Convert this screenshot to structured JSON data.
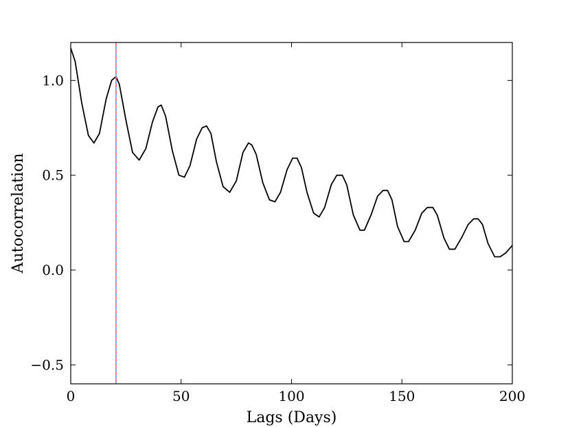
{
  "chart_data": {
    "type": "line",
    "title": "",
    "xlabel": "Lags (Days)",
    "ylabel": "Autocorrelation",
    "xlim": [
      0,
      200
    ],
    "ylim": [
      -0.6,
      1.2
    ],
    "xticks": [
      0,
      50,
      100,
      150,
      200
    ],
    "xtick_labels": [
      "0",
      "50",
      "100",
      "150",
      "200"
    ],
    "yticks": [
      -0.5,
      0.0,
      0.5,
      1.0
    ],
    "ytick_labels": [
      "−0.5",
      "0.0",
      "0.5",
      "1.0"
    ],
    "grid": false,
    "series": [
      {
        "color": "#000000",
        "x": [
          0,
          2,
          5,
          8,
          10.5,
          13,
          16,
          18.5,
          20.5,
          22,
          25,
          28,
          31,
          34,
          37,
          39.5,
          41,
          43,
          46,
          49,
          51.5,
          54,
          57,
          59.5,
          61.5,
          63.5,
          66,
          69,
          72,
          75,
          78,
          80.5,
          82,
          84,
          87,
          90,
          92.5,
          95,
          98,
          100.5,
          102.5,
          104.5,
          107,
          110,
          112.5,
          115,
          118,
          120.5,
          123,
          125,
          128,
          131,
          133,
          136,
          139,
          141.5,
          143.5,
          145.5,
          148,
          151,
          153,
          156,
          159,
          161.5,
          164,
          166,
          169,
          171.5,
          174,
          177,
          180,
          182.5,
          184.5,
          186.5,
          189,
          192,
          194.5,
          197,
          200
        ],
        "y": [
          1.17,
          1.1,
          0.88,
          0.71,
          0.67,
          0.72,
          0.9,
          1.0,
          1.02,
          0.98,
          0.79,
          0.62,
          0.58,
          0.64,
          0.78,
          0.86,
          0.87,
          0.81,
          0.63,
          0.5,
          0.49,
          0.55,
          0.69,
          0.75,
          0.76,
          0.72,
          0.57,
          0.44,
          0.41,
          0.47,
          0.62,
          0.67,
          0.66,
          0.61,
          0.46,
          0.37,
          0.36,
          0.41,
          0.53,
          0.59,
          0.59,
          0.54,
          0.41,
          0.3,
          0.28,
          0.33,
          0.45,
          0.5,
          0.5,
          0.45,
          0.29,
          0.21,
          0.21,
          0.29,
          0.39,
          0.42,
          0.42,
          0.37,
          0.23,
          0.15,
          0.15,
          0.21,
          0.3,
          0.33,
          0.33,
          0.29,
          0.17,
          0.11,
          0.11,
          0.17,
          0.24,
          0.27,
          0.27,
          0.24,
          0.14,
          0.07,
          0.07,
          0.09,
          0.13
        ]
      }
    ],
    "vlines": [
      {
        "x": 20.5,
        "color": "#5599ff",
        "style": "solid"
      },
      {
        "x": 20.5,
        "color": "#ff6680",
        "style": "dashed"
      }
    ]
  }
}
